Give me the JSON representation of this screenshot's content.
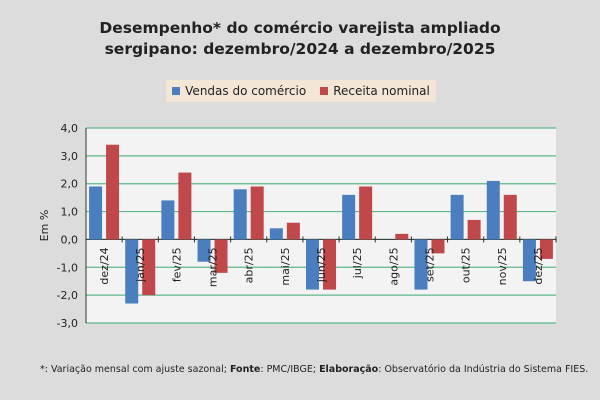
{
  "chart_data": {
    "type": "bar",
    "title_line1": "Desempenho* do comércio varejista ampliado",
    "title_line2": "sergipano: dezembro/2024 a dezembro/2025",
    "ylabel": "Em %",
    "ylim": [
      -3,
      4
    ],
    "yticks": [
      "4,0",
      "3,0",
      "2,0",
      "1,0",
      "0,0",
      "-1,0",
      "-2,0",
      "-3,0"
    ],
    "ytick_values": [
      4,
      3,
      2,
      1,
      0,
      -1,
      -2,
      -3
    ],
    "grid": true,
    "legend_position": "top",
    "categories": [
      "dez/24",
      "jan/25",
      "fev/25",
      "mar/25",
      "abr/25",
      "mai/25",
      "jun/25",
      "jul/25",
      "ago/25",
      "set/25",
      "out/25",
      "nov/25",
      "dez/25"
    ],
    "series": [
      {
        "name": "Vendas do comércio",
        "color": "#4a7ebf",
        "values": [
          1.9,
          -2.3,
          1.4,
          -0.8,
          1.8,
          0.4,
          -1.8,
          1.6,
          0.0,
          -1.8,
          1.6,
          2.1,
          -1.5
        ]
      },
      {
        "name": "Receita nominal",
        "color": "#c0474a",
        "values": [
          3.4,
          -2.0,
          2.4,
          -1.2,
          1.9,
          0.6,
          -1.8,
          1.9,
          0.2,
          -0.5,
          0.7,
          1.6,
          -0.7
        ]
      }
    ],
    "grid_color": "#5cb88a"
  },
  "footer": {
    "p1": "*: Variação mensal com ajuste sazonal; ",
    "b1": "Fonte",
    "p2": ": PMC/IBGE; ",
    "b2": "Elaboração",
    "p3": ": Observatório da Indústria do Sistema FIES."
  }
}
